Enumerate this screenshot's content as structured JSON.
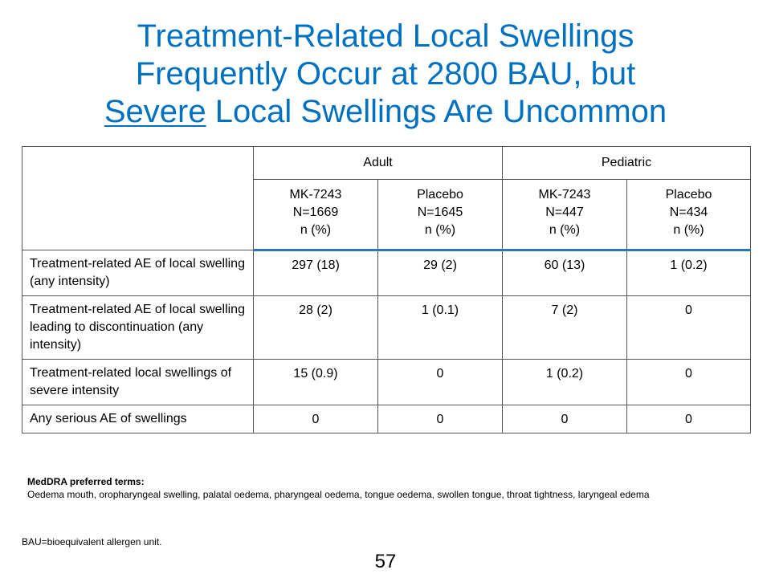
{
  "title": {
    "line1": "Treatment-Related Local Swellings",
    "line2": "Frequently Occur at 2800 BAU, but",
    "line3_underlined": "Severe",
    "line3_rest": " Local Swellings Are Uncommon"
  },
  "table": {
    "groups": [
      "Adult",
      "Pediatric"
    ],
    "columns": [
      {
        "name": "MK-7243",
        "n": "N=1669",
        "unit": "n (%)"
      },
      {
        "name": "Placebo",
        "n": "N=1645",
        "unit": "n (%)"
      },
      {
        "name": "MK-7243",
        "n": "N=447",
        "unit": "n (%)"
      },
      {
        "name": "Placebo",
        "n": "N=434",
        "unit": "n (%)"
      }
    ],
    "rows": [
      {
        "label": "Treatment-related AE of local swelling (any intensity)",
        "values": [
          "297 (18)",
          "29 (2)",
          "60 (13)",
          "1 (0.2)"
        ]
      },
      {
        "label": "Treatment-related AE of local swelling leading to discontinuation (any intensity)",
        "values": [
          "28 (2)",
          "1 (0.1)",
          "7 (2)",
          "0"
        ]
      },
      {
        "label": "Treatment-related local swellings of severe intensity",
        "values": [
          "15 (0.9)",
          "0",
          "1 (0.2)",
          "0"
        ]
      },
      {
        "label": "Any serious AE of swellings",
        "values": [
          "0",
          "0",
          "0",
          "0"
        ]
      }
    ]
  },
  "notes": {
    "heading": "MedDRA preferred terms:",
    "text": "Oedema mouth, oropharyngeal swelling, palatal oedema, pharyngeal oedema, tongue oedema, swollen tongue, throat tightness, laryngeal edema"
  },
  "footnote": "BAU=bioequivalent allergen unit.",
  "page_number": "57"
}
